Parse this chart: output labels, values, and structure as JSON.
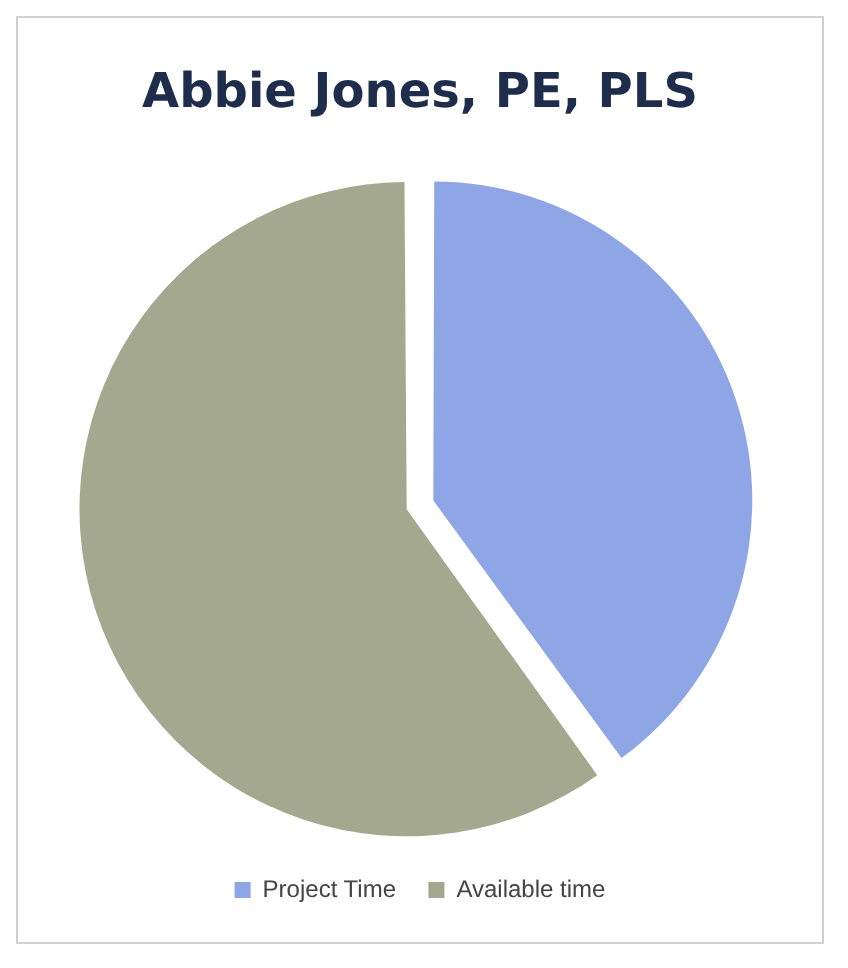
{
  "chart_data": {
    "type": "pie",
    "title": "Abbie Jones, PE, PLS",
    "categories": [
      "Project Time",
      "Available time"
    ],
    "values": [
      40,
      60
    ],
    "colors": [
      "#8fa6e6",
      "#a4a88e"
    ],
    "legend": "bottom"
  }
}
